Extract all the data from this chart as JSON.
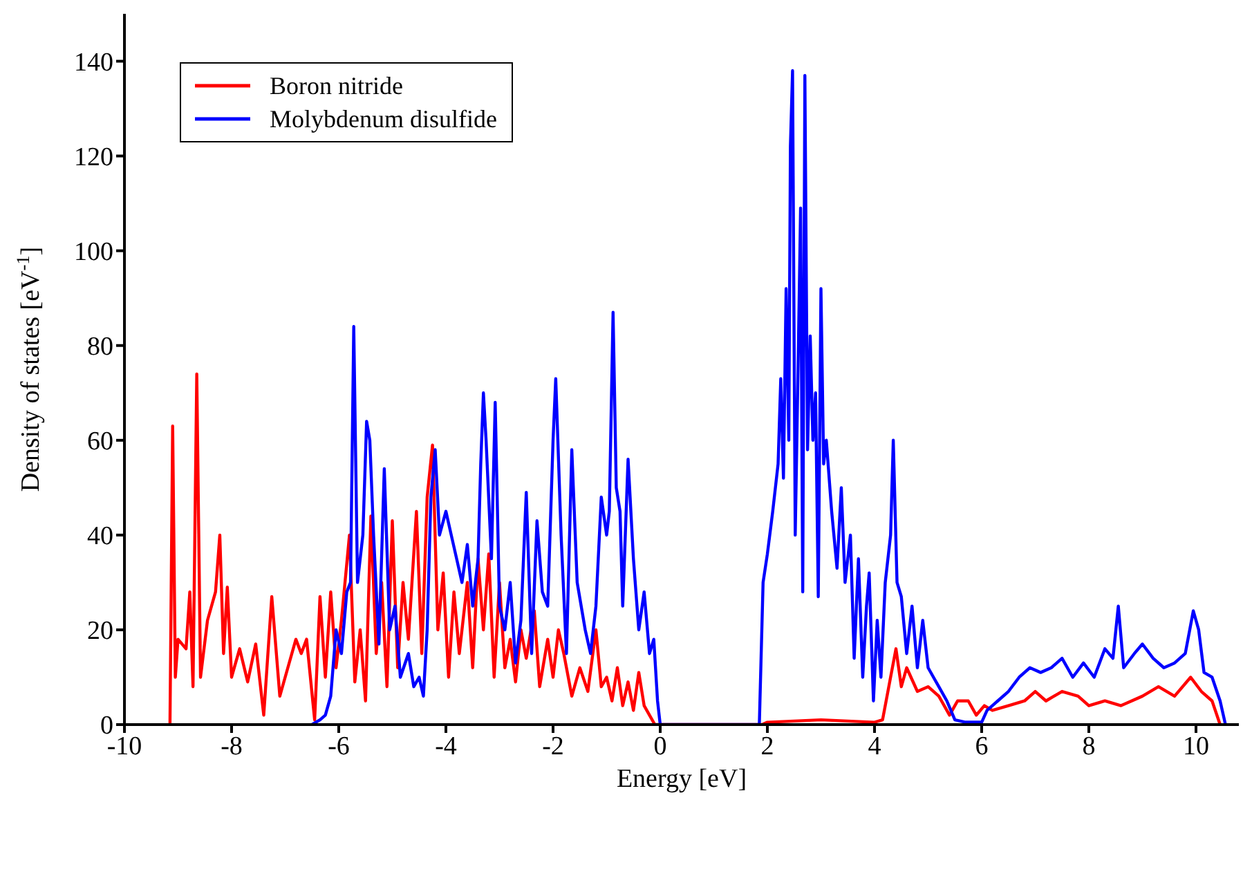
{
  "chart_data": {
    "type": "line",
    "xlabel": "Energy [eV]",
    "ylabel": "Density of states [eV$^{-1}$]",
    "xlim": [
      -10,
      10.8
    ],
    "xticks": [
      -10,
      -8,
      -6,
      -4,
      -2,
      0,
      2,
      4,
      6,
      8,
      10
    ],
    "ylim": [
      0,
      150
    ],
    "yticks": [
      0,
      20,
      40,
      60,
      80,
      100,
      120,
      140
    ],
    "grid": false,
    "legend": "top left",
    "marker": "none",
    "line_style": "solid",
    "series": [
      {
        "name": "Boron nitride",
        "color": "#ff0000",
        "x": [
          -9.15,
          -9.1,
          -9.05,
          -9.0,
          -8.85,
          -8.78,
          -8.72,
          -8.65,
          -8.58,
          -8.45,
          -8.3,
          -8.22,
          -8.15,
          -8.08,
          -8.0,
          -7.85,
          -7.7,
          -7.55,
          -7.4,
          -7.25,
          -7.1,
          -6.95,
          -6.8,
          -6.7,
          -6.6,
          -6.45,
          -6.35,
          -6.25,
          -6.15,
          -6.05,
          -5.95,
          -5.8,
          -5.7,
          -5.6,
          -5.5,
          -5.4,
          -5.3,
          -5.2,
          -5.1,
          -5.0,
          -4.9,
          -4.8,
          -4.7,
          -4.55,
          -4.45,
          -4.35,
          -4.25,
          -4.15,
          -4.05,
          -3.95,
          -3.85,
          -3.75,
          -3.6,
          -3.5,
          -3.4,
          -3.3,
          -3.2,
          -3.1,
          -3.0,
          -2.9,
          -2.8,
          -2.7,
          -2.6,
          -2.5,
          -2.35,
          -2.25,
          -2.1,
          -2.0,
          -1.9,
          -1.8,
          -1.65,
          -1.5,
          -1.35,
          -1.2,
          -1.1,
          -1.0,
          -0.9,
          -0.8,
          -0.7,
          -0.6,
          -0.5,
          -0.4,
          -0.3,
          -0.2,
          -0.1,
          0,
          1.9,
          2.0,
          3.0,
          4.0,
          4.15,
          4.3,
          4.4,
          4.5,
          4.6,
          4.8,
          5.0,
          5.2,
          5.4,
          5.55,
          5.75,
          5.9,
          6.05,
          6.2,
          6.5,
          6.8,
          7.0,
          7.2,
          7.5,
          7.8,
          8.0,
          8.3,
          8.6,
          9.0,
          9.3,
          9.6,
          9.9,
          10.1,
          10.3,
          10.45
        ],
        "values": [
          0,
          63,
          10,
          18,
          16,
          28,
          8,
          74,
          10,
          22,
          28,
          40,
          15,
          29,
          10,
          16,
          9,
          17,
          2,
          27,
          6,
          12,
          18,
          15,
          18,
          1,
          27,
          10,
          28,
          12,
          22,
          40,
          9,
          20,
          5,
          44,
          15,
          30,
          8,
          43,
          12,
          30,
          18,
          45,
          15,
          48,
          59,
          20,
          32,
          10,
          28,
          15,
          30,
          12,
          35,
          20,
          36,
          10,
          30,
          12,
          18,
          9,
          20,
          14,
          24,
          8,
          18,
          10,
          20,
          15,
          6,
          12,
          7,
          20,
          8,
          10,
          5,
          12,
          4,
          9,
          3,
          11,
          4,
          2,
          0,
          0,
          0,
          0.5,
          1,
          0.5,
          1,
          10,
          16,
          8,
          12,
          7,
          8,
          6,
          2,
          5,
          5,
          2,
          4,
          3,
          4,
          5,
          7,
          5,
          7,
          6,
          4,
          5,
          4,
          6,
          8,
          6,
          10,
          7,
          5,
          0
        ]
      },
      {
        "name": "Molybdenum disulfide",
        "color": "#0000ff",
        "x": [
          -6.5,
          -6.35,
          -6.25,
          -6.15,
          -6.05,
          -5.95,
          -5.85,
          -5.78,
          -5.72,
          -5.65,
          -5.55,
          -5.48,
          -5.42,
          -5.35,
          -5.25,
          -5.15,
          -5.05,
          -4.95,
          -4.85,
          -4.7,
          -4.6,
          -4.5,
          -4.42,
          -4.35,
          -4.28,
          -4.2,
          -4.12,
          -4.0,
          -3.9,
          -3.8,
          -3.7,
          -3.6,
          -3.5,
          -3.4,
          -3.35,
          -3.3,
          -3.25,
          -3.15,
          -3.08,
          -3.0,
          -2.9,
          -2.8,
          -2.7,
          -2.6,
          -2.5,
          -2.4,
          -2.3,
          -2.2,
          -2.1,
          -2.0,
          -1.95,
          -1.85,
          -1.75,
          -1.65,
          -1.55,
          -1.4,
          -1.3,
          -1.2,
          -1.1,
          -1.0,
          -0.95,
          -0.88,
          -0.82,
          -0.75,
          -0.7,
          -0.6,
          -0.5,
          -0.4,
          -0.3,
          -0.2,
          -0.12,
          -0.05,
          0,
          1.85,
          1.92,
          2.0,
          2.1,
          2.2,
          2.25,
          2.3,
          2.35,
          2.4,
          2.43,
          2.47,
          2.52,
          2.58,
          2.62,
          2.66,
          2.7,
          2.75,
          2.8,
          2.85,
          2.9,
          2.95,
          3.0,
          3.05,
          3.1,
          3.2,
          3.3,
          3.38,
          3.45,
          3.55,
          3.62,
          3.7,
          3.78,
          3.85,
          3.9,
          3.98,
          4.05,
          4.12,
          4.2,
          4.3,
          4.35,
          4.42,
          4.5,
          4.6,
          4.7,
          4.8,
          4.9,
          5.0,
          5.1,
          5.2,
          5.35,
          5.5,
          5.7,
          6.0,
          6.1,
          6.3,
          6.5,
          6.7,
          6.9,
          7.1,
          7.3,
          7.5,
          7.7,
          7.9,
          8.1,
          8.3,
          8.45,
          8.55,
          8.65,
          8.85,
          9.0,
          9.2,
          9.4,
          9.6,
          9.8,
          9.95,
          10.05,
          10.15,
          10.3,
          10.45,
          10.55
        ],
        "values": [
          0,
          1,
          2,
          6,
          20,
          15,
          28,
          30,
          84,
          30,
          40,
          64,
          60,
          40,
          17,
          54,
          20,
          25,
          10,
          15,
          8,
          10,
          6,
          20,
          48,
          58,
          40,
          45,
          40,
          35,
          30,
          38,
          25,
          35,
          55,
          70,
          60,
          35,
          68,
          25,
          20,
          30,
          13,
          22,
          49,
          15,
          43,
          28,
          25,
          60,
          73,
          40,
          15,
          58,
          30,
          20,
          15,
          25,
          48,
          40,
          45,
          87,
          50,
          45,
          25,
          56,
          35,
          20,
          28,
          15,
          18,
          5,
          0,
          0,
          30,
          36,
          45,
          55,
          73,
          52,
          92,
          60,
          122,
          138,
          40,
          80,
          109,
          28,
          137,
          58,
          82,
          60,
          70,
          27,
          92,
          55,
          60,
          45,
          33,
          50,
          30,
          40,
          14,
          35,
          10,
          25,
          32,
          5,
          22,
          10,
          30,
          40,
          60,
          30,
          27,
          15,
          25,
          12,
          22,
          12,
          10,
          8,
          5,
          1,
          0.5,
          0.5,
          3,
          5,
          7,
          10,
          12,
          11,
          12,
          14,
          10,
          13,
          10,
          16,
          14,
          25,
          12,
          15,
          17,
          14,
          12,
          13,
          15,
          24,
          20,
          11,
          10,
          5,
          0
        ]
      }
    ]
  }
}
